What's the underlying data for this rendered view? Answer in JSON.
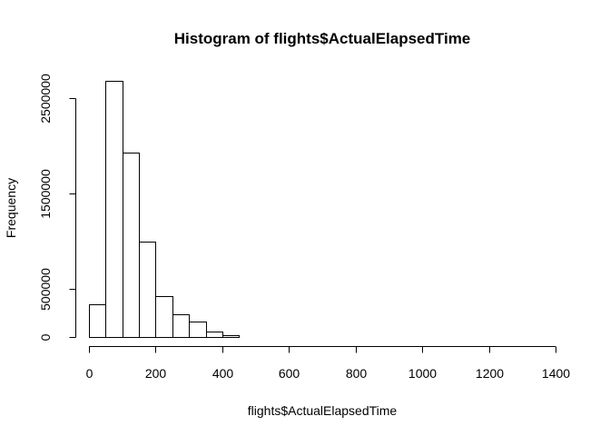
{
  "chart_data": {
    "type": "bar",
    "title": "Histogram of flights$ActualElapsedTime",
    "xlabel": "flights$ActualElapsedTime",
    "ylabel": "Frequency",
    "xlim": [
      0,
      1400
    ],
    "ylim": [
      0,
      2700000
    ],
    "bin_width": 50,
    "bins": [
      {
        "start": 0,
        "end": 50,
        "count": 340000
      },
      {
        "start": 50,
        "end": 100,
        "count": 2680000
      },
      {
        "start": 100,
        "end": 150,
        "count": 1930000
      },
      {
        "start": 150,
        "end": 200,
        "count": 1000000
      },
      {
        "start": 200,
        "end": 250,
        "count": 430000
      },
      {
        "start": 250,
        "end": 300,
        "count": 240000
      },
      {
        "start": 300,
        "end": 350,
        "count": 160000
      },
      {
        "start": 350,
        "end": 400,
        "count": 60000
      },
      {
        "start": 400,
        "end": 450,
        "count": 15000
      },
      {
        "start": 450,
        "end": 500,
        "count": 2000
      },
      {
        "start": 500,
        "end": 550,
        "count": 500
      },
      {
        "start": 550,
        "end": 600,
        "count": 200
      },
      {
        "start": 600,
        "end": 650,
        "count": 100
      },
      {
        "start": 650,
        "end": 700,
        "count": 50
      },
      {
        "start": 700,
        "end": 750,
        "count": 30
      },
      {
        "start": 750,
        "end": 800,
        "count": 20
      },
      {
        "start": 800,
        "end": 850,
        "count": 10
      },
      {
        "start": 850,
        "end": 900,
        "count": 10
      },
      {
        "start": 900,
        "end": 950,
        "count": 5
      },
      {
        "start": 950,
        "end": 1000,
        "count": 5
      },
      {
        "start": 1000,
        "end": 1050,
        "count": 5
      },
      {
        "start": 1050,
        "end": 1100,
        "count": 3
      },
      {
        "start": 1100,
        "end": 1150,
        "count": 3
      },
      {
        "start": 1150,
        "end": 1200,
        "count": 2
      },
      {
        "start": 1200,
        "end": 1250,
        "count": 2
      },
      {
        "start": 1250,
        "end": 1300,
        "count": 2
      },
      {
        "start": 1300,
        "end": 1350,
        "count": 1
      },
      {
        "start": 1350,
        "end": 1400,
        "count": 1
      }
    ],
    "x_ticks": [
      0,
      200,
      400,
      600,
      800,
      1000,
      1200,
      1400
    ],
    "x_tick_labels": [
      "0",
      "200",
      "400",
      "600",
      "800",
      "1000",
      "1200",
      "1400"
    ],
    "y_ticks": [
      0,
      500000,
      1500000,
      2500000
    ],
    "y_tick_labels": [
      "0",
      "500000",
      "1500000",
      "2500000"
    ],
    "grid": false,
    "bar_fill": "#ffffff",
    "bar_stroke": "#000000"
  }
}
